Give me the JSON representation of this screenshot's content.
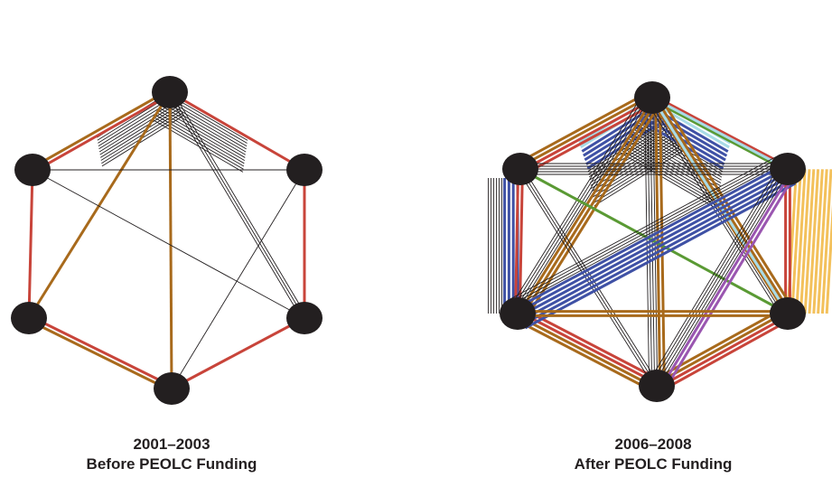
{
  "colors": {
    "node": "#231f20",
    "black": "#231f20",
    "red": "#c8443a",
    "brown": "#a86a1c",
    "blue": "#3f51a5",
    "lightblue": "#a8dbe6",
    "green": "#5a9a34",
    "purple": "#9a56b0",
    "orange": "#f3c15c"
  },
  "networks": [
    {
      "period": "2001–2003",
      "label": "Before PEOLC Funding",
      "nodes": [
        "top",
        "upper-left",
        "upper-right",
        "lower-left",
        "lower-right",
        "bottom"
      ],
      "edges": [
        {
          "a": "top",
          "b": "upper-left",
          "colors": [
            "red",
            "brown"
          ]
        },
        {
          "a": "top",
          "b": "upper-right",
          "colors": [
            "red"
          ]
        },
        {
          "a": "upper-left",
          "b": "lower-left",
          "colors": [
            "red"
          ]
        },
        {
          "a": "upper-right",
          "b": "lower-right",
          "colors": [
            "red"
          ]
        },
        {
          "a": "lower-left",
          "b": "bottom",
          "colors": [
            "red",
            "brown"
          ]
        },
        {
          "a": "lower-right",
          "b": "bottom",
          "colors": [
            "red"
          ]
        },
        {
          "a": "top",
          "b": "bottom",
          "colors": [
            "brown"
          ]
        },
        {
          "a": "top",
          "b": "lower-left",
          "colors": [
            "brown"
          ]
        },
        {
          "a": "upper-left",
          "b": "upper-right",
          "colors": [
            "black"
          ]
        },
        {
          "a": "upper-left",
          "b": "lower-right",
          "colors": [
            "black"
          ]
        },
        {
          "a": "top",
          "b": "lower-right",
          "colors": [
            "black",
            "black",
            "black"
          ]
        },
        {
          "a": "upper-right",
          "b": "bottom",
          "colors": [
            "black"
          ]
        }
      ],
      "fans": [
        {
          "node": "top",
          "side": "left",
          "colors": [
            "black",
            "black",
            "black",
            "black",
            "black",
            "black",
            "black",
            "black",
            "black",
            "black",
            "black"
          ]
        },
        {
          "node": "top",
          "side": "right",
          "colors": [
            "black",
            "black",
            "black",
            "black",
            "black",
            "black",
            "black",
            "black",
            "black",
            "black",
            "black",
            "black",
            "black"
          ]
        }
      ]
    },
    {
      "period": "2006–2008",
      "label": "After PEOLC Funding",
      "nodes": [
        "top",
        "upper-left",
        "upper-right",
        "lower-left",
        "lower-right",
        "bottom"
      ],
      "edges": [
        {
          "a": "top",
          "b": "upper-left",
          "colors": [
            "red",
            "red",
            "brown",
            "brown"
          ]
        },
        {
          "a": "top",
          "b": "upper-right",
          "colors": [
            "red",
            "green"
          ]
        },
        {
          "a": "upper-left",
          "b": "lower-left",
          "colors": [
            "red",
            "red"
          ]
        },
        {
          "a": "upper-right",
          "b": "lower-right",
          "colors": [
            "red",
            "red"
          ]
        },
        {
          "a": "lower-left",
          "b": "bottom",
          "colors": [
            "red",
            "red",
            "brown",
            "brown"
          ]
        },
        {
          "a": "lower-right",
          "b": "bottom",
          "colors": [
            "red",
            "red",
            "brown",
            "brown"
          ]
        },
        {
          "a": "top",
          "b": "bottom",
          "colors": [
            "brown",
            "brown",
            "black",
            "black",
            "black",
            "black"
          ]
        },
        {
          "a": "top",
          "b": "lower-left",
          "colors": [
            "brown",
            "brown",
            "brown",
            "black",
            "black",
            "black",
            "black"
          ]
        },
        {
          "a": "top",
          "b": "lower-right",
          "colors": [
            "brown",
            "brown",
            "brown",
            "black",
            "black"
          ]
        },
        {
          "a": "top",
          "b": "upper-right",
          "colors": [
            "lightblue"
          ]
        },
        {
          "a": "top",
          "b": "lower-right",
          "colors": [
            "lightblue"
          ]
        },
        {
          "a": "upper-left",
          "b": "upper-right",
          "colors": [
            "black",
            "black",
            "black",
            "black",
            "black"
          ]
        },
        {
          "a": "upper-left",
          "b": "lower-right",
          "colors": [
            "green"
          ]
        },
        {
          "a": "upper-left",
          "b": "bottom",
          "colors": [
            "black",
            "black",
            "black"
          ]
        },
        {
          "a": "upper-right",
          "b": "lower-left",
          "colors": [
            "blue",
            "blue",
            "blue",
            "blue",
            "blue",
            "blue",
            "black",
            "black",
            "black",
            "black"
          ]
        },
        {
          "a": "upper-right",
          "b": "bottom",
          "colors": [
            "purple",
            "purple",
            "black",
            "black",
            "black",
            "black",
            "black"
          ]
        },
        {
          "a": "lower-left",
          "b": "lower-right",
          "colors": [
            "brown",
            "brown"
          ]
        }
      ],
      "fans": [
        {
          "node": "top",
          "side": "left",
          "colors": [
            "lightblue",
            "lightblue",
            "blue",
            "blue",
            "blue",
            "blue",
            "blue",
            "black",
            "black",
            "black",
            "black",
            "black",
            "black",
            "black",
            "black",
            "black",
            "black",
            "black",
            "black",
            "black"
          ]
        },
        {
          "node": "top",
          "side": "right",
          "colors": [
            "lightblue",
            "lightblue",
            "blue",
            "blue",
            "blue",
            "blue",
            "blue",
            "black",
            "black",
            "black",
            "black",
            "black",
            "black",
            "black",
            "black",
            "black",
            "black",
            "black",
            "black",
            "black",
            "black"
          ]
        },
        {
          "node": "lower-left",
          "side": "up",
          "colors": [
            "blue",
            "blue",
            "blue",
            "blue",
            "black",
            "black",
            "black",
            "black",
            "black",
            "black"
          ]
        },
        {
          "node": "lower-right",
          "side": "up-right",
          "colors": [
            "orange",
            "orange",
            "orange",
            "orange",
            "orange",
            "orange",
            "orange",
            "orange",
            "orange",
            "orange"
          ]
        }
      ]
    }
  ]
}
